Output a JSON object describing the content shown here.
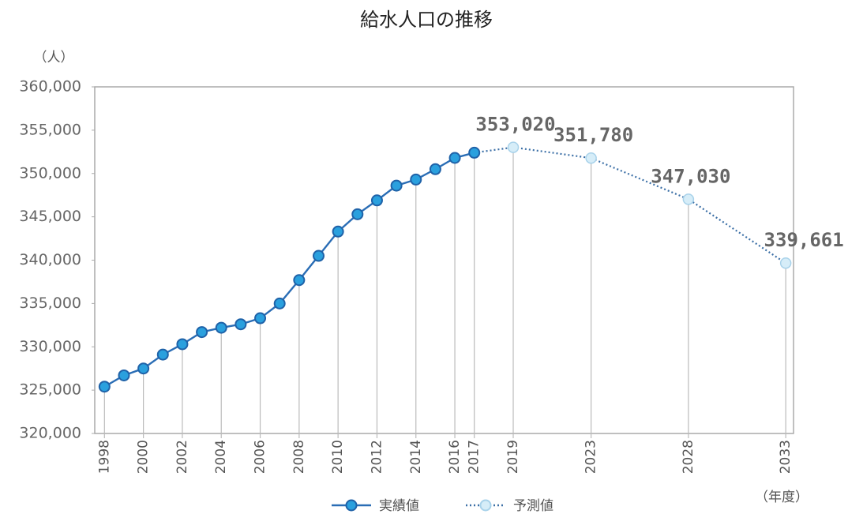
{
  "chart_data": {
    "type": "line",
    "title": "給水人口の推移",
    "y_label": "（人）",
    "x_label": "（年度）",
    "xlim": [
      1997.5,
      2033.4
    ],
    "xticks": [
      1998,
      2000,
      2002,
      2004,
      2006,
      2008,
      2010,
      2012,
      2014,
      2016,
      2017,
      2019,
      2023,
      2028,
      2033
    ],
    "ylim": [
      320000,
      360000
    ],
    "yticks": [
      {
        "value": 320000,
        "label": "320,000"
      },
      {
        "value": 325000,
        "label": "325,000"
      },
      {
        "value": 330000,
        "label": "330,000"
      },
      {
        "value": 335000,
        "label": "335,000"
      },
      {
        "value": 340000,
        "label": "340,000"
      },
      {
        "value": 345000,
        "label": "345,000"
      },
      {
        "value": 350000,
        "label": "350,000"
      },
      {
        "value": 355000,
        "label": "355,000"
      },
      {
        "value": 360000,
        "label": "360,000"
      }
    ],
    "series": [
      {
        "name": "実績値",
        "color": "#2a6db5",
        "marker_color": "#2aa0de",
        "dashed": false,
        "x": [
          1998,
          1999,
          2000,
          2001,
          2002,
          2003,
          2004,
          2005,
          2006,
          2007,
          2008,
          2009,
          2010,
          2011,
          2012,
          2013,
          2014,
          2015,
          2016,
          2017
        ],
        "values": [
          325400,
          326700,
          327500,
          329100,
          330300,
          331700,
          332200,
          332600,
          333300,
          335000,
          337700,
          340500,
          343300,
          345300,
          346900,
          348600,
          349300,
          350500,
          351800,
          352400
        ]
      },
      {
        "name": "予測値",
        "color": "#3b6fa6",
        "marker_color": "#d6edf8",
        "dashed": true,
        "x": [
          2019,
          2023,
          2028,
          2033
        ],
        "values": [
          353020,
          351780,
          347030,
          339661
        ],
        "value_labels": [
          "353,020",
          "351,780",
          "347,030",
          "339,661"
        ]
      }
    ]
  }
}
